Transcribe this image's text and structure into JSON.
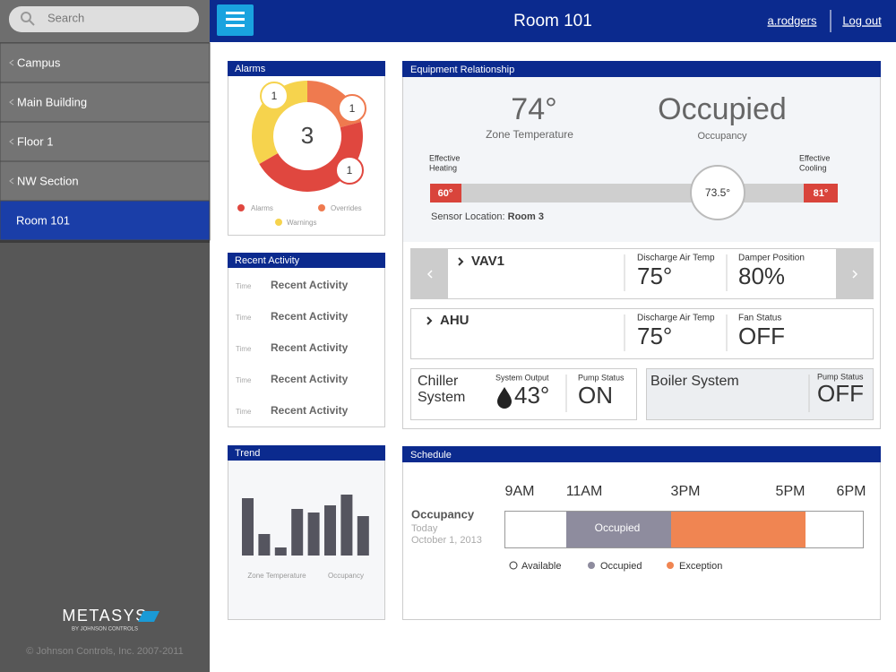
{
  "sidebar": {
    "search": "Search",
    "nav": [
      "Campus",
      "Main Building",
      "Floor 1",
      "NW Section",
      "Room 101"
    ],
    "brand": "METASYS",
    "brand_sub": "BY JOHNSON CONTROLS",
    "copyright": "© Johnson Controls, Inc. 2007-2011"
  },
  "header": {
    "title": "Room 101",
    "user": "a.rodgers",
    "logout": "Log out"
  },
  "alarms": {
    "title": "Alarms",
    "total": 3,
    "badges": [
      1,
      1,
      1
    ],
    "legend": [
      "Alarms",
      "Overrides",
      "Warnings"
    ]
  },
  "recent_activity": {
    "title": "Recent Activity",
    "rows": [
      {
        "time": "Time",
        "text": "Recent Activity"
      },
      {
        "time": "Time",
        "text": "Recent Activity"
      },
      {
        "time": "Time",
        "text": "Recent Activity"
      },
      {
        "time": "Time",
        "text": "Recent Activity"
      },
      {
        "time": "Time",
        "text": "Recent Activity"
      }
    ]
  },
  "trend": {
    "title": "Trend",
    "values": [
      64,
      24,
      9,
      52,
      48,
      56,
      68,
      44
    ],
    "labels": [
      "Zone Temperature",
      "Occupancy"
    ]
  },
  "equipment": {
    "title": "Equipment Relationship",
    "zone_temperature": {
      "value": "74°",
      "label": "Zone Temperature"
    },
    "occupancy": {
      "value": "Occupied",
      "label": "Occupancy"
    },
    "heating_label": [
      "Effective",
      "Heating"
    ],
    "cooling_label": [
      "Effective",
      "Cooling"
    ],
    "heating_setpoint": "60°",
    "cooling_setpoint": "81°",
    "current": "73.5°",
    "sensor_label": "Sensor Location:",
    "sensor_value": "Room 3",
    "units": [
      {
        "name": "VAV1",
        "fields": [
          {
            "label": "Discharge Air Temp",
            "value": "75°"
          },
          {
            "label": "Damper Position",
            "value": "80%"
          }
        ]
      },
      {
        "name": "AHU",
        "fields": [
          {
            "label": "Discharge Air Temp",
            "value": "75°"
          },
          {
            "label": "Fan Status",
            "value": "OFF"
          }
        ]
      }
    ],
    "chiller": {
      "name": [
        "Chiller",
        "System"
      ],
      "fields": [
        {
          "label": "System Output",
          "value": "43°"
        },
        {
          "label": "Pump Status",
          "value": "ON"
        }
      ]
    },
    "boiler": {
      "name": "Boiler System",
      "fields": [
        {
          "label": "Pump Status",
          "value": "OFF"
        }
      ]
    }
  },
  "schedule": {
    "title": "Schedule",
    "row_label": "Occupancy",
    "day": "Today",
    "date": "October 1, 2013",
    "times": [
      "9AM",
      "11AM",
      "3PM",
      "5PM",
      "6PM"
    ],
    "legend": [
      "Available",
      "Occupied",
      "Exception"
    ]
  }
}
